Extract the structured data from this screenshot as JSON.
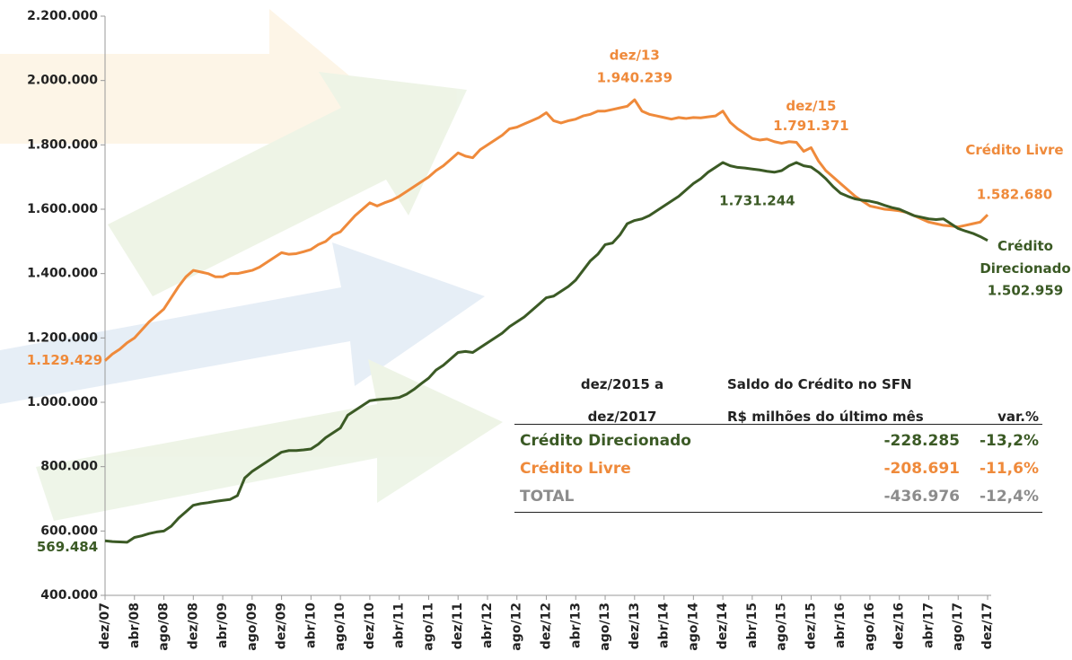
{
  "chart_data": {
    "type": "line",
    "categories": [
      "dez/07",
      null,
      null,
      null,
      "abr/08",
      null,
      null,
      null,
      "ago/08",
      null,
      null,
      null,
      "dez/08",
      null,
      null,
      null,
      "abr/09",
      null,
      null,
      null,
      "ago/09",
      null,
      null,
      null,
      "dez/09",
      null,
      null,
      null,
      "abr/10",
      null,
      null,
      null,
      "ago/10",
      null,
      null,
      null,
      "dez/10",
      null,
      null,
      null,
      "abr/11",
      null,
      null,
      null,
      "ago/11",
      null,
      null,
      null,
      "dez/11",
      null,
      null,
      null,
      "abr/12",
      null,
      null,
      null,
      "ago/12",
      null,
      null,
      null,
      "dez/12",
      null,
      null,
      null,
      "abr/13",
      null,
      null,
      null,
      "ago/13",
      null,
      null,
      null,
      "dez/13",
      null,
      null,
      null,
      "abr/14",
      null,
      null,
      null,
      "ago/14",
      null,
      null,
      null,
      "dez/14",
      null,
      null,
      null,
      "abr/15",
      null,
      null,
      null,
      "ago/15",
      null,
      null,
      null,
      "dez/15",
      null,
      null,
      null,
      "abr/16",
      null,
      null,
      null,
      "ago/16",
      null,
      null,
      null,
      "dez/16",
      null,
      null,
      null,
      "abr/17",
      null,
      null,
      null,
      "ago/17",
      null,
      null,
      null,
      "dez/17"
    ],
    "series": [
      {
        "name": "Crédito Livre",
        "color": "#ef8a3b",
        "values": [
          1129429,
          1150000,
          1165000,
          1185000,
          1200000,
          1225000,
          1250000,
          1270000,
          1290000,
          1325000,
          1360000,
          1390000,
          1410000,
          1405000,
          1400000,
          1390000,
          1390000,
          1400000,
          1400000,
          1405000,
          1410000,
          1420000,
          1435000,
          1450000,
          1465000,
          1460000,
          1462000,
          1468000,
          1475000,
          1490000,
          1500000,
          1520000,
          1530000,
          1555000,
          1580000,
          1600000,
          1620000,
          1610000,
          1620000,
          1628000,
          1640000,
          1655000,
          1670000,
          1685000,
          1700000,
          1720000,
          1735000,
          1755000,
          1775000,
          1765000,
          1760000,
          1785000,
          1800000,
          1815000,
          1830000,
          1850000,
          1855000,
          1865000,
          1875000,
          1885000,
          1900000,
          1875000,
          1868000,
          1875000,
          1880000,
          1890000,
          1895000,
          1905000,
          1905000,
          1910000,
          1915000,
          1920000,
          1940239,
          1905000,
          1895000,
          1890000,
          1885000,
          1880000,
          1885000,
          1882000,
          1885000,
          1884000,
          1887000,
          1890000,
          1905000,
          1870000,
          1850000,
          1835000,
          1820000,
          1815000,
          1818000,
          1810000,
          1805000,
          1810000,
          1808000,
          1780000,
          1791371,
          1750000,
          1720000,
          1700000,
          1680000,
          1660000,
          1640000,
          1625000,
          1610000,
          1605000,
          1600000,
          1598000,
          1595000,
          1590000,
          1580000,
          1570000,
          1560000,
          1555000,
          1550000,
          1548000,
          1545000,
          1550000,
          1555000,
          1560000,
          1582680
        ],
        "value_labels": [
          "1.129.429",
          null,
          null,
          null,
          null,
          null,
          null,
          null,
          null,
          null,
          null,
          null,
          null,
          null,
          null,
          null,
          null,
          null,
          null,
          null,
          null,
          null,
          null,
          null,
          null,
          null,
          null,
          null,
          null,
          null,
          null,
          null,
          null,
          null,
          null,
          null,
          null,
          null,
          null,
          null,
          null,
          null,
          null,
          null,
          null,
          null,
          null,
          null,
          null,
          null,
          null,
          null,
          null,
          null,
          null,
          null,
          null,
          null,
          null,
          null,
          null,
          null,
          null,
          null,
          null,
          null,
          null,
          null,
          null,
          null,
          null,
          null,
          "1.940.239",
          null,
          null,
          null,
          null,
          null,
          null,
          null,
          null,
          null,
          null,
          null,
          null,
          null,
          null,
          null,
          null,
          null,
          null,
          null,
          null,
          null,
          null,
          null,
          "1.791.371",
          null,
          null,
          null,
          null,
          null,
          null,
          null,
          null,
          null,
          null,
          null,
          null,
          null,
          null,
          null,
          null,
          null,
          null,
          null,
          null,
          null,
          null,
          null,
          "1.582.680"
        ]
      },
      {
        "name": "Crédito Direcionado",
        "color": "#3b5a25",
        "values": [
          569484,
          567000,
          566000,
          565000,
          580000,
          585000,
          592000,
          597000,
          600000,
          615000,
          640000,
          660000,
          680000,
          685000,
          688000,
          692000,
          695000,
          698000,
          710000,
          765000,
          785000,
          800000,
          815000,
          830000,
          845000,
          850000,
          850000,
          852000,
          855000,
          870000,
          890000,
          905000,
          920000,
          960000,
          975000,
          990000,
          1005000,
          1008000,
          1010000,
          1012000,
          1015000,
          1025000,
          1040000,
          1058000,
          1075000,
          1100000,
          1115000,
          1135000,
          1155000,
          1158000,
          1155000,
          1170000,
          1185000,
          1200000,
          1215000,
          1235000,
          1250000,
          1265000,
          1285000,
          1305000,
          1325000,
          1330000,
          1345000,
          1360000,
          1380000,
          1410000,
          1440000,
          1460000,
          1490000,
          1495000,
          1520000,
          1555000,
          1565000,
          1570000,
          1580000,
          1595000,
          1610000,
          1625000,
          1640000,
          1660000,
          1680000,
          1695000,
          1715000,
          1730000,
          1745000,
          1735000,
          1730000,
          1728000,
          1725000,
          1722000,
          1718000,
          1715000,
          1720000,
          1735000,
          1745000,
          1735000,
          1731244,
          1715000,
          1695000,
          1670000,
          1650000,
          1640000,
          1632000,
          1628000,
          1625000,
          1620000,
          1612000,
          1605000,
          1600000,
          1590000,
          1580000,
          1575000,
          1570000,
          1568000,
          1570000,
          1555000,
          1540000,
          1532000,
          1525000,
          1515000,
          1502959
        ],
        "value_labels": [
          "569.484",
          null,
          null,
          null,
          null,
          null,
          null,
          null,
          null,
          null,
          null,
          null,
          null,
          null,
          null,
          null,
          null,
          null,
          null,
          null,
          null,
          null,
          null,
          null,
          null,
          null,
          null,
          null,
          null,
          null,
          null,
          null,
          null,
          null,
          null,
          null,
          null,
          null,
          null,
          null,
          null,
          null,
          null,
          null,
          null,
          null,
          null,
          null,
          null,
          null,
          null,
          null,
          null,
          null,
          null,
          null,
          null,
          null,
          null,
          null,
          null,
          null,
          null,
          null,
          null,
          null,
          null,
          null,
          null,
          null,
          null,
          null,
          null,
          null,
          null,
          null,
          null,
          null,
          null,
          null,
          null,
          null,
          null,
          null,
          null,
          null,
          null,
          null,
          null,
          null,
          null,
          null,
          null,
          null,
          null,
          null,
          "1.731.244",
          null,
          null,
          null,
          null,
          null,
          null,
          null,
          null,
          null,
          null,
          null,
          null,
          null,
          null,
          null,
          null,
          null,
          null,
          null,
          null,
          null,
          null,
          null,
          "1.502.959"
        ]
      }
    ],
    "ylim": [
      400000,
      2200000
    ],
    "yticks": [
      {
        "value": 400000,
        "label": "400.000"
      },
      {
        "value": 600000,
        "label": "600.000"
      },
      {
        "value": 800000,
        "label": "800.000"
      },
      {
        "value": 1000000,
        "label": "1.000.000"
      },
      {
        "value": 1200000,
        "label": "1.200.000"
      },
      {
        "value": 1400000,
        "label": "1.400.000"
      },
      {
        "value": 1600000,
        "label": "1.600.000"
      },
      {
        "value": 1800000,
        "label": "1.800.000"
      },
      {
        "value": 2000000,
        "label": "2.000.000"
      },
      {
        "value": 2200000,
        "label": "2.200.000"
      }
    ],
    "grid": false
  },
  "table": {
    "header_period": [
      "dez/2015 a",
      "dez/2017"
    ],
    "header_balance": [
      "Saldo do Crédito no SFN",
      "R$ milhões do último mês"
    ],
    "header_var": "var.%",
    "rows": [
      [
        "Crédito Direcionado",
        "-228.285",
        "-13,2%"
      ],
      [
        "Crédito Livre",
        "-208.691",
        "-11,6%"
      ],
      [
        "TOTAL",
        "-436.976",
        "-12,4%"
      ]
    ],
    "row_colors": [
      "#3b5a25",
      "#ef8a3b",
      "#8c8c8c"
    ]
  }
}
